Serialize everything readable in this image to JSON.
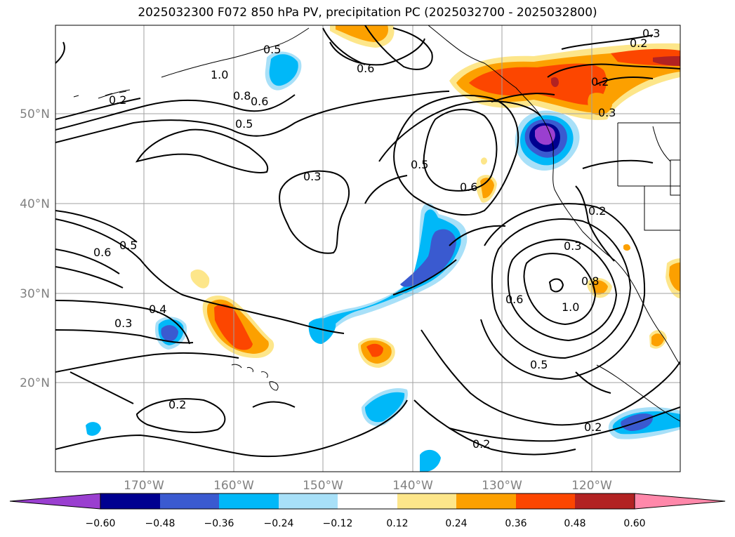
{
  "title": "2025032300 F072 850 hPa PV, precipitation PC (2025032700 - 2025032800)",
  "lat_ticks": [
    "50°N",
    "40°N",
    "30°N",
    "20°N"
  ],
  "lon_ticks": [
    "170°W",
    "160°W",
    "150°W",
    "140°W",
    "130°W",
    "120°W"
  ],
  "contour_labels": [
    "0.3",
    "0.2",
    "0.6",
    "1.0",
    "0.8",
    "0.6",
    "0.5",
    "0.5",
    "0.3",
    "0.5",
    "0.6",
    "0.6",
    "0.5",
    "0.4",
    "0.3",
    "0.2",
    "0.2",
    "0.3",
    "0.8",
    "1.0",
    "0.6",
    "0.5",
    "0.2",
    "0.2",
    "0.2",
    "0.3",
    "0.2"
  ],
  "colorbar": {
    "labels": [
      "−0.60",
      "−0.48",
      "−0.36",
      "−0.24",
      "−0.12",
      "0.12",
      "0.24",
      "0.36",
      "0.48",
      "0.60"
    ],
    "colors": [
      "#9a3fd0",
      "#000090",
      "#3a5ad0",
      "#00b8f8",
      "#a8e0f8",
      "#ffffff",
      "#fde68a",
      "#fca000",
      "#fc4600",
      "#b22222",
      "#ff88aa"
    ]
  }
}
